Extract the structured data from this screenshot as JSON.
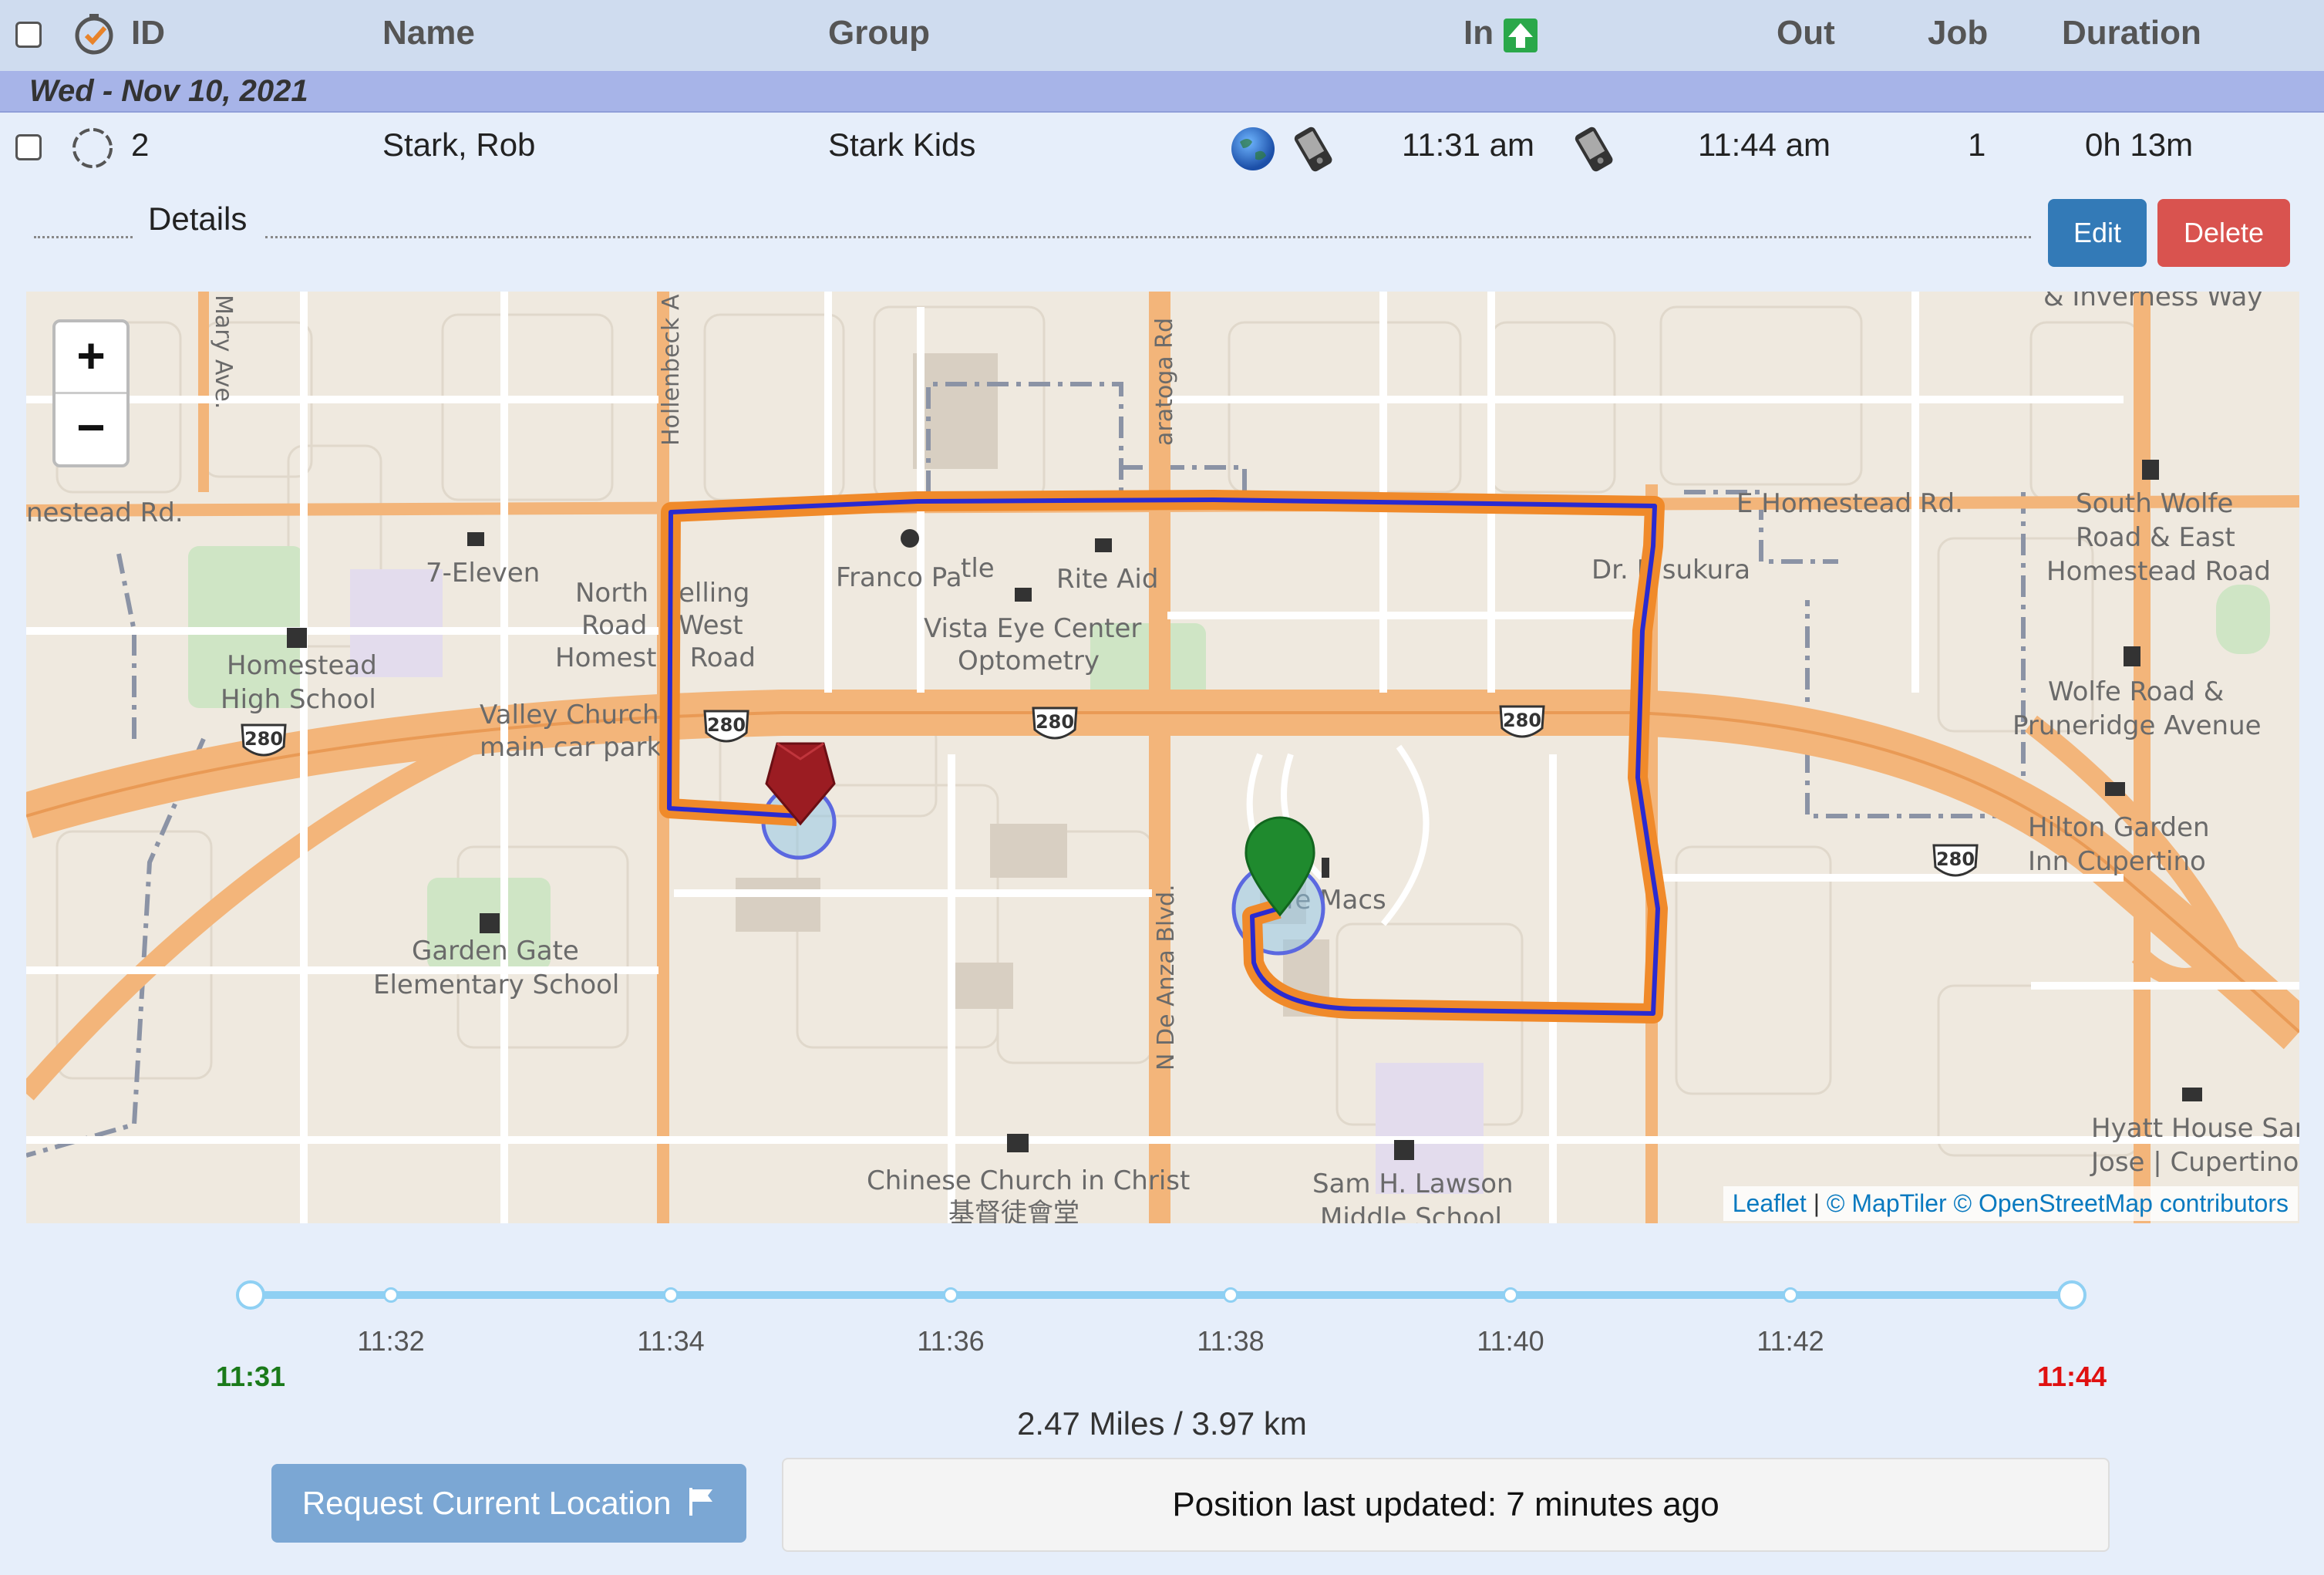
{
  "header": {
    "columns": {
      "id": "ID",
      "name": "Name",
      "group": "Group",
      "in": "In",
      "out": "Out",
      "job": "Job",
      "duration": "Duration"
    }
  },
  "date_group": "Wed - Nov 10, 2021",
  "row": {
    "id": "2",
    "name": "Stark, Rob",
    "group": "Stark Kids",
    "in_time": "11:31 am",
    "out_time": "11:44 am",
    "job": "1",
    "duration": "0h 13m"
  },
  "details": {
    "label": "Details",
    "edit_label": "Edit",
    "delete_label": "Delete"
  },
  "map": {
    "zoom_in": "+",
    "zoom_out": "−",
    "labels": {
      "homestead_rd_w": "nestead Rd.",
      "homestead_rd_e": "E Homestead Rd.",
      "mary_ave": "Mary Ave.",
      "hollenbeck": "Hollenbeck A",
      "saratoga": "aratoga Rd",
      "de_anza": "N De Anza Blvd.",
      "seven_eleven": "7-Eleven",
      "homestead_hs": "Homestead\nHigh School",
      "north_belling_1": "North",
      "north_belling_2": "elling",
      "road_west_1": "Road",
      "road_west_2": "West",
      "homestead_road": "Homest  d Road",
      "valley_church": "Valley Church",
      "main_car_park": "main car park",
      "franco_park": "Franco Pa",
      "little": "tle",
      "rite_aid": "Rite Aid",
      "vista_eye": "Vista Eye Center",
      "optometry": "Optometry",
      "dr_kasukura": "Dr. K  sukura",
      "inverness": "& Inverness Way",
      "south_wolfe": "South Wolfe\nRoad & East\nHomestead Road",
      "wolfe_pruneridge": "Wolfe Road &\nPruneridge Avenue",
      "hilton": "Hilton Garden\nInn Cupertino",
      "garden_gate": "Garden Gate\nElementary School",
      "macs": "  ffe Macs",
      "chinese_church": "Chinese Church in Christ",
      "chinese_church_cn": "基督徒會堂",
      "sam_lawson": "Sam H. Lawson\nMiddle School",
      "hyatt": "Hyatt House San\nJose | Cupertino",
      "shield": "280"
    },
    "attribution": {
      "leaflet": "Leaflet",
      "sep": " | ",
      "maptiler": "© MapTiler",
      "osm": "© OpenStreetMap contributors"
    },
    "colors": {
      "route_outer": "#f08a2a",
      "route_inner": "#2a2ad0",
      "start_marker": "#1f8a2e",
      "end_marker": "#9b1c22"
    }
  },
  "timeline": {
    "start": "11:31",
    "end": "11:44",
    "ticks": [
      "11:32",
      "11:34",
      "11:36",
      "11:38",
      "11:40",
      "11:42"
    ],
    "start_color": "#1a7a1a",
    "end_color": "#e01010"
  },
  "distance": "2.47 Miles / 3.97 km",
  "request_button": "Request Current Location",
  "position_status": "Position last updated: 7 minutes ago"
}
